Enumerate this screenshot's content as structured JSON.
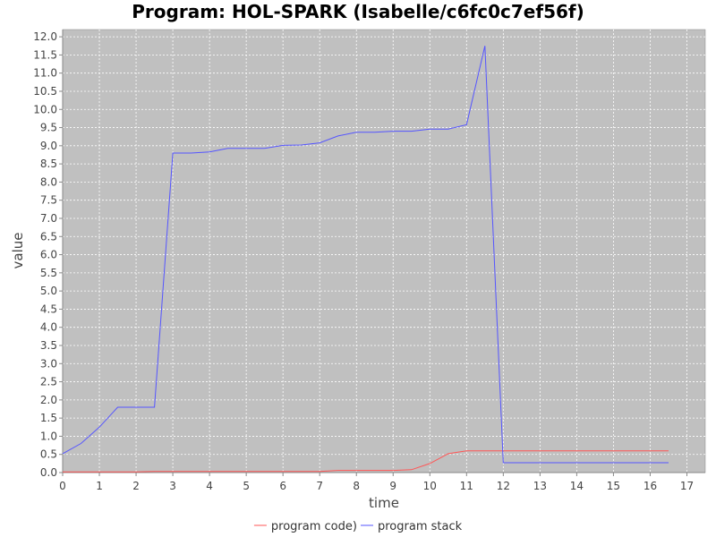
{
  "chart_data": {
    "type": "line",
    "title": "Program: HOL-SPARK (Isabelle/c6fc0c7ef56f)",
    "xlabel": "time",
    "ylabel": "value",
    "xlim": [
      0,
      17.5
    ],
    "ylim": [
      0,
      12.2
    ],
    "xticks": [
      "0",
      "1",
      "2",
      "3",
      "4",
      "5",
      "6",
      "7",
      "8",
      "9",
      "10",
      "11",
      "12",
      "13",
      "14",
      "15",
      "16",
      "17"
    ],
    "yticks": [
      "0.0",
      "0.5",
      "1.0",
      "1.5",
      "2.0",
      "2.5",
      "3.0",
      "3.5",
      "4.0",
      "4.5",
      "5.0",
      "5.5",
      "6.0",
      "6.5",
      "7.0",
      "7.5",
      "8.0",
      "8.5",
      "9.0",
      "9.5",
      "10.0",
      "10.5",
      "11.0",
      "11.5",
      "12.0"
    ],
    "grid": true,
    "legend_position": "bottom",
    "plot_background": "#c0c0c0",
    "series": [
      {
        "name": "program code)",
        "color": "#ff5555",
        "points": [
          [
            0,
            0.02
          ],
          [
            0.5,
            0.02
          ],
          [
            1,
            0.02
          ],
          [
            1.5,
            0.02
          ],
          [
            2,
            0.02
          ],
          [
            2.5,
            0.03
          ],
          [
            3,
            0.03
          ],
          [
            3.5,
            0.03
          ],
          [
            4,
            0.03
          ],
          [
            4.5,
            0.03
          ],
          [
            5,
            0.03
          ],
          [
            5.5,
            0.03
          ],
          [
            6,
            0.03
          ],
          [
            6.5,
            0.03
          ],
          [
            7,
            0.03
          ],
          [
            7.5,
            0.06
          ],
          [
            8,
            0.06
          ],
          [
            8.5,
            0.06
          ],
          [
            9,
            0.06
          ],
          [
            9.5,
            0.08
          ],
          [
            10,
            0.25
          ],
          [
            10.5,
            0.52
          ],
          [
            11,
            0.6
          ],
          [
            11.5,
            0.6
          ],
          [
            12,
            0.6
          ],
          [
            12.5,
            0.6
          ],
          [
            13,
            0.6
          ],
          [
            13.5,
            0.6
          ],
          [
            14,
            0.6
          ],
          [
            14.5,
            0.6
          ],
          [
            15,
            0.6
          ],
          [
            15.5,
            0.6
          ],
          [
            16,
            0.6
          ],
          [
            16.5,
            0.6
          ]
        ]
      },
      {
        "name": "program stack",
        "color": "#5555ff",
        "points": [
          [
            0,
            0.52
          ],
          [
            0.5,
            0.8
          ],
          [
            1,
            1.25
          ],
          [
            1.5,
            1.8
          ],
          [
            2,
            1.8
          ],
          [
            2.5,
            1.8
          ],
          [
            3,
            8.8
          ],
          [
            3.5,
            8.8
          ],
          [
            4,
            8.83
          ],
          [
            4.5,
            8.93
          ],
          [
            5,
            8.93
          ],
          [
            5.5,
            8.93
          ],
          [
            6,
            9.01
          ],
          [
            6.5,
            9.02
          ],
          [
            7,
            9.08
          ],
          [
            7.5,
            9.27
          ],
          [
            8,
            9.37
          ],
          [
            8.5,
            9.37
          ],
          [
            9,
            9.4
          ],
          [
            9.5,
            9.4
          ],
          [
            10,
            9.46
          ],
          [
            10.5,
            9.46
          ],
          [
            11,
            9.58
          ],
          [
            11.5,
            11.75
          ],
          [
            12,
            0.27
          ],
          [
            12.5,
            0.27
          ],
          [
            13,
            0.27
          ],
          [
            13.5,
            0.27
          ],
          [
            14,
            0.27
          ],
          [
            14.5,
            0.27
          ],
          [
            15,
            0.27
          ],
          [
            15.5,
            0.27
          ],
          [
            16,
            0.27
          ],
          [
            16.5,
            0.27
          ]
        ]
      }
    ]
  }
}
